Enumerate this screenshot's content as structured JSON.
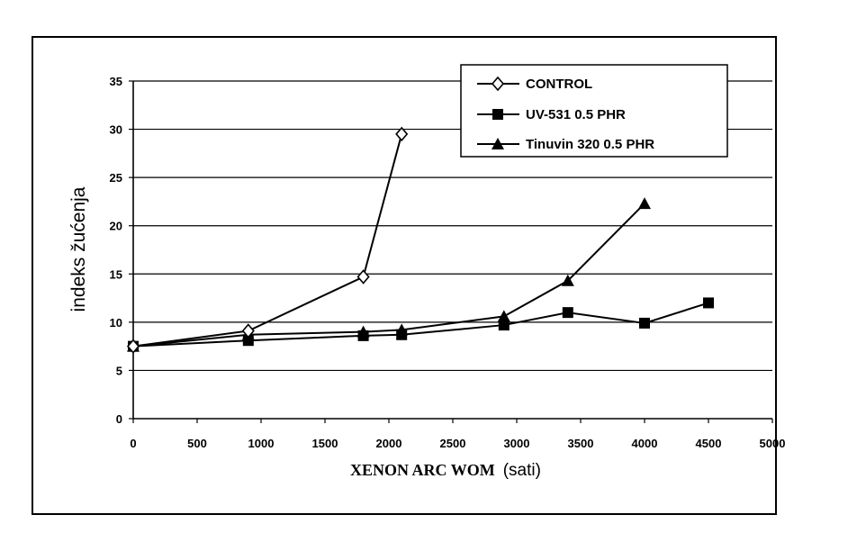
{
  "chart_data": {
    "type": "line",
    "ylabel": "indeks žućenja",
    "xlabel_main": "XENON ARC WOM",
    "xlabel_unit": "(sati)",
    "xlim": [
      0,
      5000
    ],
    "ylim": [
      0,
      35
    ],
    "xticks": [
      0,
      500,
      1000,
      1500,
      2000,
      2500,
      3000,
      3500,
      4000,
      4500,
      5000
    ],
    "yticks": [
      0,
      5,
      10,
      15,
      20,
      25,
      30,
      35
    ],
    "grid": "horizontal",
    "legend_position": "top-right",
    "series": [
      {
        "name": "CONTROL",
        "marker": "diamond-open",
        "color": "#000000",
        "x": [
          0,
          900,
          1800,
          2100
        ],
        "y": [
          7.5,
          9.1,
          14.7,
          29.5
        ]
      },
      {
        "name": "UV-531 0.5 PHR",
        "marker": "square-filled",
        "color": "#000000",
        "x": [
          0,
          900,
          1800,
          2100,
          2900,
          3400,
          4000,
          4500
        ],
        "y": [
          7.5,
          8.1,
          8.6,
          8.7,
          9.7,
          11.0,
          9.9,
          12.0
        ]
      },
      {
        "name": "Tinuvin 320 0.5 PHR",
        "marker": "triangle-filled",
        "color": "#000000",
        "x": [
          0,
          900,
          1800,
          2100,
          2900,
          3400,
          4000
        ],
        "y": [
          7.5,
          8.7,
          9.0,
          9.2,
          10.6,
          14.3,
          22.3
        ]
      }
    ]
  }
}
